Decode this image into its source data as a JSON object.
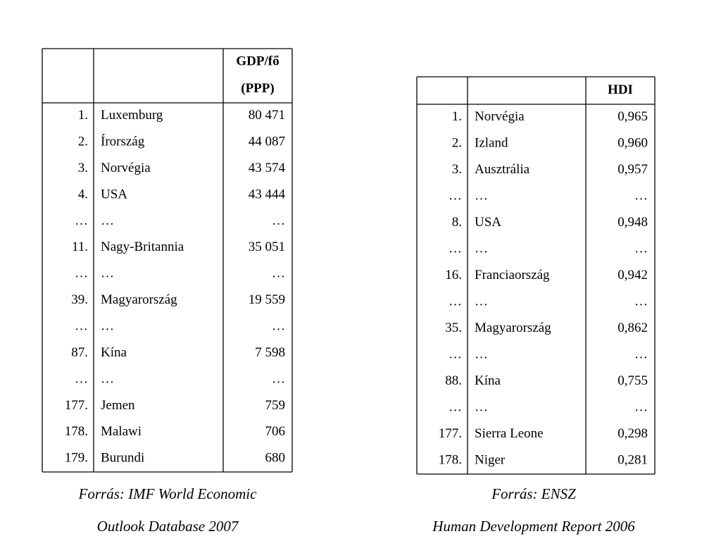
{
  "tables": [
    {
      "header_lines": [
        "GDP/fő",
        "(PPP)"
      ],
      "rows": [
        [
          "1.",
          "Luxemburg",
          "80 471"
        ],
        [
          "2.",
          "Írország",
          "44 087"
        ],
        [
          "3.",
          "Norvégia",
          "43 574"
        ],
        [
          "4.",
          "USA",
          "43 444"
        ],
        [
          "…",
          "…",
          "…"
        ],
        [
          "11.",
          "Nagy-Britannia",
          "35 051"
        ],
        [
          "…",
          "…",
          "…"
        ],
        [
          "39.",
          "Magyarország",
          "19 559"
        ],
        [
          "…",
          "…",
          "…"
        ],
        [
          "87.",
          "Kína",
          "7 598"
        ],
        [
          "…",
          "…",
          "…"
        ],
        [
          "177.",
          "Jemen",
          "759"
        ],
        [
          "178.",
          "Malawi",
          "706"
        ],
        [
          "179.",
          "Burundi",
          "680"
        ]
      ],
      "source": [
        "Forrás: IMF World Economic",
        "Outlook Database 2007"
      ]
    },
    {
      "header_lines": [
        "HDI"
      ],
      "rows": [
        [
          "1.",
          "Norvégia",
          "0,965"
        ],
        [
          "2.",
          "Izland",
          "0,960"
        ],
        [
          "3.",
          "Ausztrália",
          "0,957"
        ],
        [
          "…",
          "…",
          "…"
        ],
        [
          "8.",
          "USA",
          "0,948"
        ],
        [
          "…",
          "…",
          "…"
        ],
        [
          "16.",
          "Franciaország",
          "0,942"
        ],
        [
          "…",
          "…",
          "…"
        ],
        [
          "35.",
          "Magyarország",
          "0,862"
        ],
        [
          "…",
          "…",
          "…"
        ],
        [
          "88.",
          "Kína",
          "0,755"
        ],
        [
          "…",
          "…",
          "…"
        ],
        [
          "177.",
          "Sierra Leone",
          "0,298"
        ],
        [
          "178.",
          "Niger",
          "0,281"
        ]
      ],
      "source": [
        "Forrás: ENSZ",
        "Human Development Report 2006"
      ]
    }
  ]
}
